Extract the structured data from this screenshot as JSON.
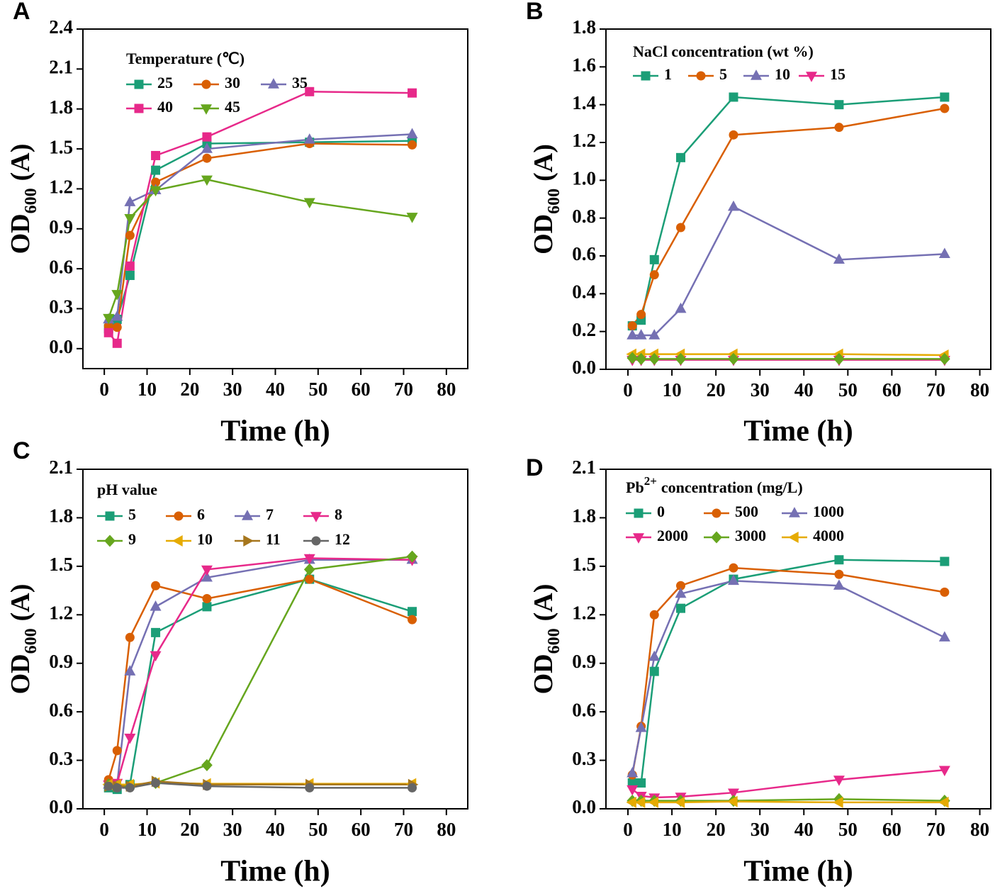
{
  "chart_data": [
    {
      "type": "line",
      "panel_label": "A",
      "xlabel": "Time (h)",
      "ylabel": [
        "OD",
        "600",
        "(A)"
      ],
      "legend_title": [
        "Temperature (℃)"
      ],
      "legend_columns": 3,
      "xlim": [
        -5,
        85
      ],
      "xticks": [
        0,
        10,
        20,
        30,
        40,
        50,
        60,
        70,
        80
      ],
      "ylim": [
        -0.15,
        2.4
      ],
      "yticks": [
        {
          "value": 0,
          "label": "0.0"
        },
        0.3,
        0.6,
        0.9,
        1.2,
        1.5,
        1.8,
        2.1,
        2.4
      ],
      "x": [
        1,
        3,
        6,
        12,
        24,
        48,
        72
      ],
      "series": [
        {
          "name": "25",
          "color": "#1b9e77",
          "marker": "square",
          "values": [
            0.15,
            0.22,
            0.55,
            1.34,
            1.54,
            1.55,
            1.56
          ]
        },
        {
          "name": "30",
          "color": "#d95f02",
          "marker": "circle",
          "values": [
            0.17,
            0.16,
            0.85,
            1.25,
            1.43,
            1.54,
            1.53
          ]
        },
        {
          "name": "35",
          "color": "#7570b3",
          "marker": "triangle-up",
          "values": [
            0.22,
            0.24,
            1.1,
            1.19,
            1.5,
            1.57,
            1.61
          ]
        },
        {
          "name": "40",
          "color": "#e7298a",
          "marker": "square",
          "values": [
            0.12,
            0.04,
            0.62,
            1.45,
            1.59,
            1.93,
            1.92
          ]
        },
        {
          "name": "45",
          "color": "#66a61e",
          "marker": "triangle-down",
          "values": [
            0.23,
            0.41,
            0.98,
            1.19,
            1.27,
            1.1,
            0.99
          ]
        }
      ]
    },
    {
      "type": "line",
      "panel_label": "B",
      "xlabel": "Time (h)",
      "ylabel": [
        "OD",
        "600",
        "(A)"
      ],
      "legend_title": [
        "NaCl concentration (wt %)"
      ],
      "legend_columns": 4,
      "xlim": [
        -5,
        82.5
      ],
      "xticks": [
        0,
        10,
        20,
        30,
        40,
        50,
        60,
        70,
        80
      ],
      "ylim": [
        0,
        1.8
      ],
      "yticks": [
        {
          "value": 0,
          "label": "0.0"
        },
        0.2,
        0.4,
        0.6,
        0.8,
        {
          "value": 1,
          "label": "1.0"
        },
        1.2,
        1.4,
        1.6,
        1.8
      ],
      "x": [
        1,
        3,
        6,
        12,
        24,
        48,
        72
      ],
      "series": [
        {
          "name": "1",
          "color": "#1b9e77",
          "marker": "square",
          "values": [
            0.23,
            0.26,
            0.58,
            1.12,
            1.44,
            1.4,
            1.44
          ]
        },
        {
          "name": "5",
          "color": "#d95f02",
          "marker": "circle",
          "values": [
            0.23,
            0.29,
            0.5,
            0.75,
            1.24,
            1.28,
            1.38
          ]
        },
        {
          "name": "10",
          "color": "#7570b3",
          "marker": "triangle-up",
          "values": [
            0.18,
            0.18,
            0.18,
            0.32,
            0.86,
            0.58,
            0.61
          ]
        },
        {
          "name": "15",
          "color": "#e7298a",
          "marker": "triangle-down",
          "values": [
            0.05,
            0.05,
            0.05,
            0.05,
            0.05,
            0.05,
            0.05
          ]
        },
        {
          "color": "#e6ab02",
          "marker": "triangle-left",
          "values": [
            0.08,
            0.08,
            0.08,
            0.08,
            0.08,
            0.08,
            0.075
          ]
        },
        {
          "color": "#66a61e",
          "marker": "diamond",
          "values": [
            0.06,
            0.055,
            0.055,
            0.055,
            0.055,
            0.055,
            0.055
          ]
        }
      ]
    },
    {
      "type": "line",
      "panel_label": "C",
      "xlabel": "Time (h)",
      "ylabel": [
        "OD",
        "600",
        "(A)"
      ],
      "legend_title": [
        "pH value"
      ],
      "legend_columns": 4,
      "xlim": [
        -5,
        85
      ],
      "xticks": [
        0,
        10,
        20,
        30,
        40,
        50,
        60,
        70,
        80
      ],
      "ylim": [
        0,
        2.1
      ],
      "yticks": [
        {
          "value": 0,
          "label": "0.0"
        },
        0.3,
        0.6,
        0.9,
        1.2,
        1.5,
        1.8,
        2.1
      ],
      "x": [
        1,
        3,
        6,
        12,
        24,
        48,
        72
      ],
      "series": [
        {
          "name": "5",
          "color": "#1b9e77",
          "marker": "square",
          "values": [
            0.13,
            0.12,
            0.15,
            1.09,
            1.25,
            1.42,
            1.22
          ]
        },
        {
          "name": "6",
          "color": "#d95f02",
          "marker": "circle",
          "values": [
            0.18,
            0.36,
            1.06,
            1.38,
            1.3,
            1.42,
            1.17
          ]
        },
        {
          "name": "7",
          "color": "#7570b3",
          "marker": "triangle-up",
          "values": [
            0.15,
            0.15,
            0.85,
            1.25,
            1.43,
            1.54,
            1.54
          ]
        },
        {
          "name": "8",
          "color": "#e7298a",
          "marker": "triangle-down",
          "values": [
            0.15,
            0.16,
            0.44,
            0.95,
            1.48,
            1.55,
            1.54
          ]
        },
        {
          "name": "9",
          "color": "#66a61e",
          "marker": "diamond",
          "values": [
            0.15,
            0.14,
            0.14,
            0.16,
            0.27,
            1.48,
            1.56
          ]
        },
        {
          "name": "10",
          "color": "#e6ab02",
          "marker": "triangle-left",
          "values": [
            0.15,
            0.15,
            0.15,
            0.16,
            0.155,
            0.155,
            0.155
          ]
        },
        {
          "name": "11",
          "color": "#a6761d",
          "marker": "triangle-right",
          "values": [
            0.14,
            0.14,
            0.14,
            0.17,
            0.15,
            0.15,
            0.15
          ]
        },
        {
          "name": "12",
          "color": "#666666",
          "marker": "circle",
          "values": [
            0.14,
            0.13,
            0.13,
            0.16,
            0.14,
            0.13,
            0.13
          ]
        }
      ]
    },
    {
      "type": "line",
      "panel_label": "D",
      "xlabel": "Time (h)",
      "ylabel": [
        "OD",
        "600",
        "(A)"
      ],
      "legend_title": [
        "Pb",
        "2+",
        "concentration (mg/L)"
      ],
      "legend_columns": 3,
      "xlim": [
        -5,
        82.5
      ],
      "xticks": [
        0,
        10,
        20,
        30,
        40,
        50,
        60,
        70,
        80
      ],
      "ylim": [
        0,
        2.1
      ],
      "yticks": [
        {
          "value": 0,
          "label": "0.0"
        },
        0.3,
        0.6,
        0.9,
        1.2,
        1.5,
        1.8,
        2.1
      ],
      "x": [
        1,
        3,
        6,
        12,
        24,
        48,
        72
      ],
      "series": [
        {
          "name": "0",
          "color": "#1b9e77",
          "marker": "square",
          "values": [
            0.16,
            0.16,
            0.85,
            1.24,
            1.42,
            1.54,
            1.53
          ]
        },
        {
          "name": "500",
          "color": "#d95f02",
          "marker": "circle",
          "values": [
            0.21,
            0.51,
            1.2,
            1.38,
            1.49,
            1.45,
            1.34
          ]
        },
        {
          "name": "1000",
          "color": "#7570b3",
          "marker": "triangle-up",
          "values": [
            0.22,
            0.5,
            0.94,
            1.33,
            1.41,
            1.38,
            1.06
          ]
        },
        {
          "name": "2000",
          "color": "#e7298a",
          "marker": "triangle-down",
          "values": [
            0.12,
            0.08,
            0.07,
            0.075,
            0.1,
            0.18,
            0.24
          ]
        },
        {
          "name": "3000",
          "color": "#66a61e",
          "marker": "diamond",
          "values": [
            0.05,
            0.05,
            0.05,
            0.05,
            0.05,
            0.06,
            0.05
          ]
        },
        {
          "name": "4000",
          "color": "#e6ab02",
          "marker": "triangle-left",
          "values": [
            0.04,
            0.04,
            0.04,
            0.04,
            0.045,
            0.04,
            0.04
          ]
        }
      ]
    }
  ]
}
